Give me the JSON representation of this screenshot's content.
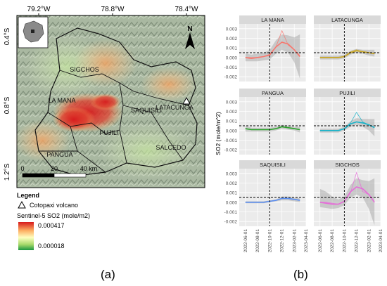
{
  "figure": {
    "caption_a": "(a)",
    "caption_b": "(b)"
  },
  "map": {
    "lon_labels": [
      "79.2°W",
      "78.8°W",
      "78.4°W"
    ],
    "lat_labels": [
      "0.4°S",
      "0.8°S",
      "1.2°S"
    ],
    "north_label": "N",
    "regions": [
      "SIGCHOS",
      "LA MANA",
      "SAQUISILI",
      "LATACUNGA",
      "PUJILI",
      "SALCEDO",
      "PANGUA"
    ],
    "scale_labels": [
      "0",
      "20",
      "40 km"
    ],
    "legend": {
      "title": "Legend",
      "volcano_label": "Cotopaxi volcano",
      "so2_title": "Sentinel-5 SO2 (mole/m2)",
      "max_value": "0.000417",
      "min_value": "0.000018",
      "colors": [
        "#d7191c",
        "#fdae61",
        "#ffffbf",
        "#a6d96a",
        "#1a9641"
      ]
    }
  },
  "chart_data": {
    "type": "line",
    "ylabel": "SO2 (mole/m^2)",
    "x_ticks": [
      "2022-06-01",
      "2022-08-01",
      "2022-10-01",
      "2022-12-01",
      "2023-02-01",
      "2023-04-01"
    ],
    "y_ticks": [
      "-0.002",
      "-0.001",
      "0.000",
      "0.001",
      "0.002",
      "0.003"
    ],
    "ylim": [
      -0.0025,
      0.0035
    ],
    "x_range": [
      "2022-05-01",
      "2023-04-01"
    ],
    "vline_date": "2022-10-01",
    "hline_value": 0.0005,
    "grid": true,
    "panels": [
      {
        "name": "LA MANA",
        "color": "#f8766d",
        "x": [
          "2022-06-01",
          "2022-07-01",
          "2022-08-01",
          "2022-09-01",
          "2022-10-01",
          "2022-11-01",
          "2022-12-01",
          "2023-01-01",
          "2023-02-01",
          "2023-03-01"
        ],
        "raw": [
          0.0,
          0.0,
          0.0,
          0.0001,
          0.0002,
          0.0011,
          0.0028,
          0.0013,
          0.0008,
          0.0002
        ],
        "smooth": [
          0.0,
          -0.0001,
          0.0,
          0.0001,
          0.0003,
          0.0011,
          0.0016,
          0.0014,
          0.0008,
          0.0001
        ],
        "band_low": [
          -0.0004,
          -0.0004,
          -0.0004,
          -0.0003,
          -0.0002,
          0.0004,
          0.0008,
          0.0005,
          -0.0005,
          -0.0022
        ],
        "band_high": [
          0.0004,
          0.0003,
          0.0004,
          0.0005,
          0.0008,
          0.0018,
          0.0024,
          0.0023,
          0.0021,
          0.0024
        ]
      },
      {
        "name": "LATACUNGA",
        "color": "#c9a51f",
        "x": [
          "2022-06-01",
          "2022-07-01",
          "2022-08-01",
          "2022-09-01",
          "2022-10-01",
          "2022-11-01",
          "2022-12-01",
          "2023-01-01",
          "2023-02-01",
          "2023-03-01"
        ],
        "raw": [
          0.0,
          0.0,
          0.0,
          0.0,
          0.0001,
          0.0006,
          0.0008,
          0.0006,
          0.0005,
          0.0004
        ],
        "smooth": [
          0.0,
          0.0,
          0.0,
          0.0,
          0.0001,
          0.0005,
          0.0007,
          0.0006,
          0.0005,
          0.0004
        ],
        "band_low": [
          -0.0002,
          -0.0002,
          -0.0002,
          -0.0002,
          -0.0001,
          0.0003,
          0.0005,
          0.0004,
          0.0002,
          0.0001
        ],
        "band_high": [
          0.0002,
          0.0002,
          0.0002,
          0.0002,
          0.0003,
          0.0007,
          0.0009,
          0.0008,
          0.0008,
          0.0008
        ]
      },
      {
        "name": "PANGUA",
        "color": "#29a329",
        "x": [
          "2022-06-01",
          "2022-07-01",
          "2022-08-01",
          "2022-09-01",
          "2022-10-01",
          "2022-11-01",
          "2022-12-01",
          "2023-01-01",
          "2023-02-01",
          "2023-03-01"
        ],
        "raw": [
          0.0002,
          0.0001,
          0.0001,
          0.0001,
          0.0001,
          0.0002,
          0.0004,
          0.0003,
          0.0002,
          0.0001
        ],
        "smooth": [
          0.0002,
          0.0001,
          0.0001,
          0.0001,
          0.0001,
          0.0002,
          0.0004,
          0.0003,
          0.0002,
          0.0001
        ],
        "band_low": [
          -0.0001,
          -0.0001,
          -0.0001,
          -0.0001,
          -0.0001,
          0.0,
          0.0002,
          0.0001,
          0.0,
          -0.0002
        ],
        "band_high": [
          0.0005,
          0.0003,
          0.0003,
          0.0003,
          0.0003,
          0.0004,
          0.0006,
          0.0005,
          0.0004,
          0.0004
        ]
      },
      {
        "name": "PUJILI",
        "color": "#17b3c9",
        "x": [
          "2022-06-01",
          "2022-07-01",
          "2022-08-01",
          "2022-09-01",
          "2022-10-01",
          "2022-11-01",
          "2022-12-01",
          "2023-01-01",
          "2023-02-01",
          "2023-03-01"
        ],
        "raw": [
          0.0,
          0.0,
          0.0,
          0.0,
          0.0002,
          0.0008,
          0.0019,
          0.0009,
          0.0006,
          0.0003
        ],
        "smooth": [
          0.0,
          0.0,
          0.0,
          0.0,
          0.0002,
          0.0007,
          0.0009,
          0.0008,
          0.0006,
          0.0003
        ],
        "band_low": [
          -0.0002,
          -0.0002,
          -0.0002,
          -0.0002,
          0.0,
          0.0004,
          0.0006,
          0.0004,
          0.0,
          -0.0006
        ],
        "band_high": [
          0.0002,
          0.0002,
          0.0002,
          0.0002,
          0.0004,
          0.001,
          0.0013,
          0.0012,
          0.0012,
          0.0012
        ]
      },
      {
        "name": "SAQUISILI",
        "color": "#5b8ef0",
        "x": [
          "2022-06-01",
          "2022-07-01",
          "2022-08-01",
          "2022-09-01",
          "2022-10-01",
          "2022-11-01",
          "2022-12-01",
          "2023-01-01",
          "2023-02-01",
          "2023-03-01"
        ],
        "raw": [
          0.0,
          0.0,
          0.0,
          0.0,
          0.0001,
          0.0002,
          0.0004,
          0.0004,
          0.0003,
          0.0002
        ],
        "smooth": [
          0.0,
          0.0,
          0.0,
          0.0,
          0.0001,
          0.0002,
          0.0004,
          0.0004,
          0.0003,
          0.0002
        ],
        "band_low": [
          -0.0001,
          -0.0001,
          -0.0001,
          -0.0001,
          0.0,
          0.0001,
          0.0002,
          0.0002,
          0.0001,
          0.0
        ],
        "band_high": [
          0.0001,
          0.0001,
          0.0001,
          0.0001,
          0.0002,
          0.0003,
          0.0006,
          0.0006,
          0.0005,
          0.0004
        ]
      },
      {
        "name": "SIGCHOS",
        "color": "#e66bd9",
        "x": [
          "2022-06-01",
          "2022-07-01",
          "2022-08-01",
          "2022-09-01",
          "2022-10-01",
          "2022-11-01",
          "2022-12-01",
          "2023-01-01",
          "2023-02-01",
          "2023-03-01"
        ],
        "raw": [
          0.0,
          0.0,
          -0.0001,
          -0.0002,
          0.0001,
          0.001,
          0.0031,
          0.0011,
          0.0008,
          0.0
        ],
        "smooth": [
          0.0,
          -0.0001,
          -0.0002,
          -0.0002,
          0.0001,
          0.0011,
          0.0016,
          0.0014,
          0.0008,
          0.0
        ],
        "band_low": [
          -0.0005,
          -0.0006,
          -0.0007,
          -0.0006,
          -0.0003,
          0.0005,
          0.0008,
          0.0005,
          -0.0007,
          -0.0024
        ],
        "band_high": [
          0.0014,
          0.0011,
          0.0006,
          0.0003,
          0.0006,
          0.0018,
          0.0025,
          0.0023,
          0.0022,
          0.0025
        ]
      }
    ]
  }
}
